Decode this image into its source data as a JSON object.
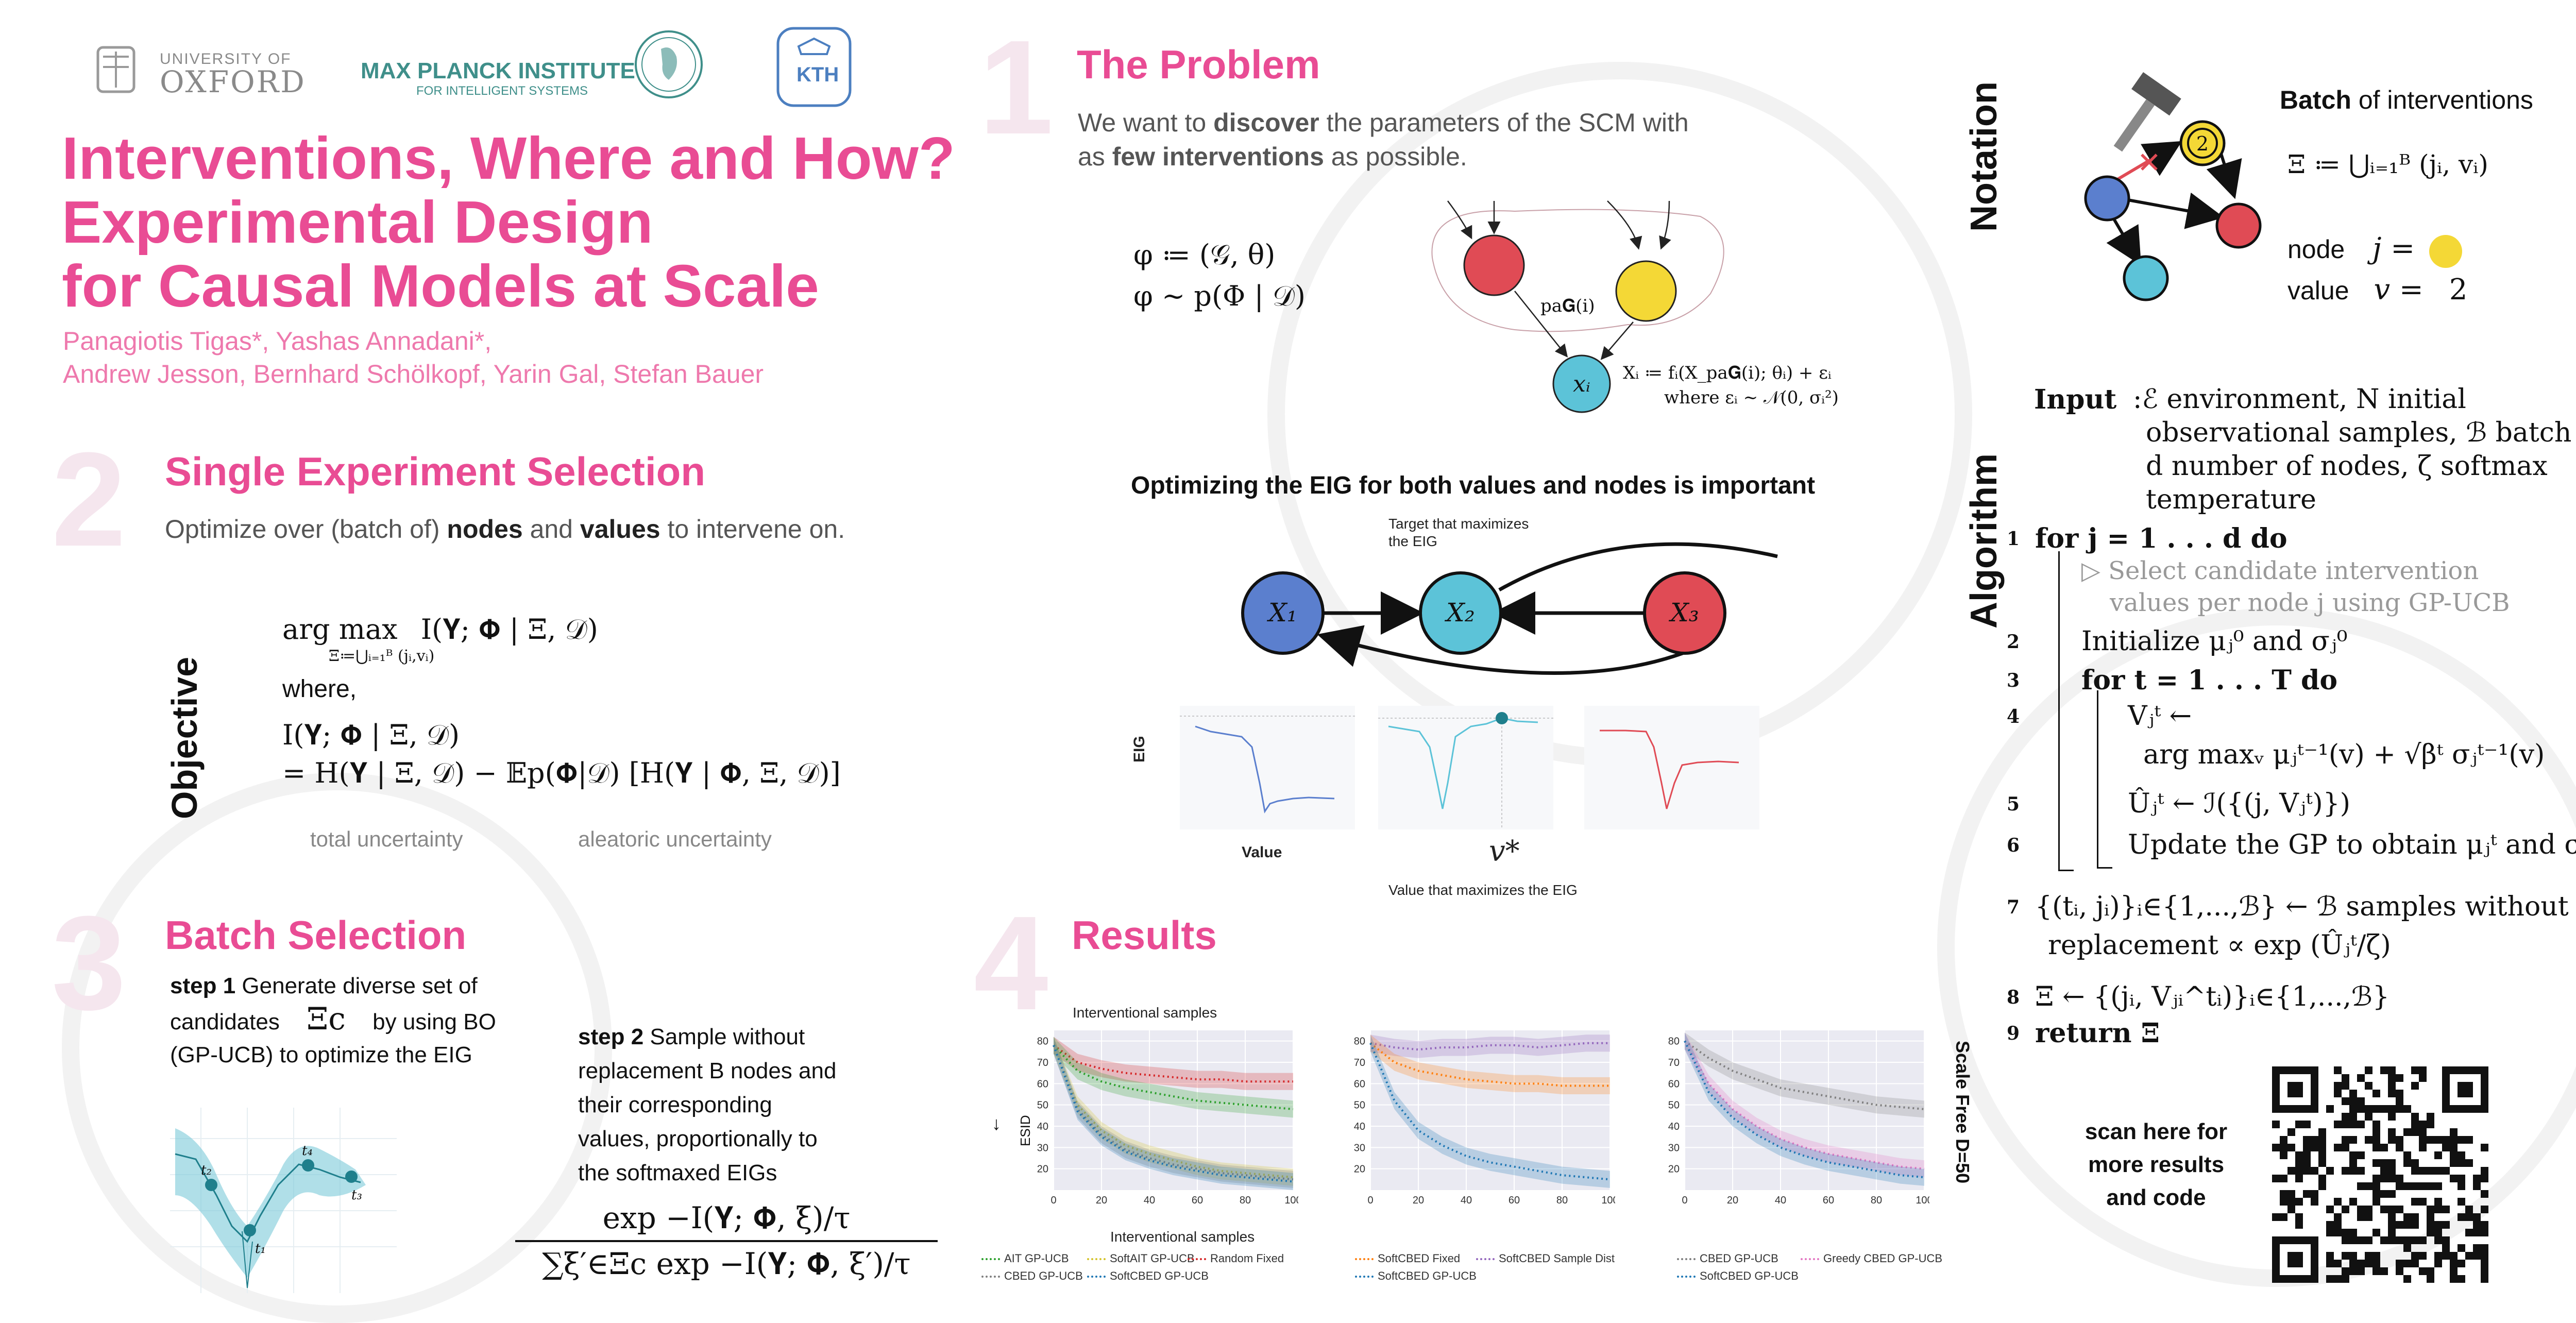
{
  "logos": {
    "oxford_top": "UNIVERSITY OF",
    "oxford_bottom": "OXFORD",
    "mpi_top": "MAX PLANCK INSTITUTE",
    "mpi_bottom": "FOR INTELLIGENT SYSTEMS",
    "kth": "KTH"
  },
  "title": {
    "line1": "Interventions, Where and How?",
    "line2": "Experimental Design",
    "line3": "for Causal Models at Scale"
  },
  "authors": {
    "line1": "Panagiotis Tigas*, Yashas Annadani*,",
    "line2": "Andrew Jesson, Bernhard Schölkopf, Yarin Gal, Stefan Bauer"
  },
  "section_numbers": {
    "s1": "1",
    "s2": "2",
    "s3": "3",
    "s4": "4"
  },
  "problem": {
    "heading": "The Problem",
    "text1a": "We want to ",
    "text1b": "discover",
    "text1c": " the parameters of the SCM with",
    "text2a": "as ",
    "text2b": "few interventions",
    "text2c": " as possible.",
    "eq1": "φ ≔ (𝒢, θ)",
    "eq2": "φ ∼ p(Φ | 𝒟)",
    "pa_label": "pa𝐆(i)",
    "xi_label": "xᵢ",
    "scm_eq1": "Xᵢ ≔ fᵢ(X_pa𝐆(i); θᵢ) + εᵢ",
    "scm_eq2": "where εᵢ ∼ 𝒩(0, σᵢ²)"
  },
  "eig": {
    "heading": "Optimizing the EIG for both values and nodes is important",
    "target_note_1": "Target that maximizes",
    "target_note_2": "the EIG",
    "node1": "X₁",
    "node2": "X₂",
    "node3": "X₃",
    "ylabel": "EIG",
    "xlabel": "Value",
    "vstar": "v*",
    "caption": "Value that maximizes the EIG"
  },
  "single": {
    "heading": "Single Experiment Selection",
    "text_a": "Optimize over (batch of) ",
    "text_b": "nodes",
    "text_c": " and ",
    "text_d": "values",
    "text_e": " to intervene on.",
    "vertical_label": "Objective",
    "argmax": "arg max",
    "argmax_sub": "Ξ≔⋃ᵢ₌₁ᴮ (jᵢ,vᵢ)",
    "objective": "I(𝐘; 𝚽 | Ξ, 𝒟)",
    "where": "where,",
    "mi": "I(𝐘; 𝚽 | Ξ, 𝒟)",
    "decomp": "=  H(𝐘 | Ξ, 𝒟) − 𝔼p(𝚽|𝒟) [H(𝐘 | 𝚽, Ξ, 𝒟)]",
    "total": "total uncertainty",
    "aleatoric": "aleatoric uncertainty"
  },
  "batch": {
    "heading": "Batch Selection",
    "step1_bold": "step 1",
    "step1_l1": " Generate diverse set of",
    "step1_l2a": "candidates",
    "step1_sym": "Ξc",
    "step1_l2b": "by using BO",
    "step1_l3": "(GP-UCB) to optimize the EIG",
    "step2_bold": "step 2",
    "step2_l1": " Sample without",
    "step2_l2": "replacement B nodes and",
    "step2_l3": "their corresponding",
    "step2_l4": "values, proportionally to",
    "step2_l5": "the softmaxed EIGs",
    "numerator": "exp −I(𝐘; 𝚽, ξ)/τ",
    "denominator": "∑ξ′∈Ξc exp −I(𝐘; 𝚽, ξ′)/τ",
    "t_labels": [
      "t₂",
      "t₁",
      "t₄",
      "t₃"
    ]
  },
  "results": {
    "heading": "Results",
    "panel_title": "Interventional samples",
    "ylabel": "ESID",
    "xlabel": "Interventional samples",
    "right_label": "Scale Free D=50",
    "legend1": [
      "AIT GP-UCB",
      "SoftAIT GP-UCB",
      "Random Fixed",
      "CBED GP-UCB",
      "SoftCBED GP-UCB"
    ],
    "legend2": [
      "SoftCBED Fixed",
      "SoftCBED Sample Dist",
      "SoftCBED GP-UCB"
    ],
    "legend3": [
      "CBED GP-UCB",
      "Greedy CBED GP-UCB",
      "SoftCBED GP-UCB"
    ],
    "xticks": [
      "0",
      "20",
      "40",
      "60",
      "80",
      "100"
    ],
    "yticks": [
      "80",
      "70",
      "60",
      "50",
      "40",
      "30",
      "20"
    ]
  },
  "chart_data": [
    {
      "type": "line",
      "x": [
        0,
        10,
        20,
        30,
        40,
        50,
        60,
        70,
        80,
        90,
        100
      ],
      "xlabel": "Interventional samples",
      "ylabel": "ESID",
      "ylim": [
        10,
        85
      ],
      "series": [
        {
          "name": "Random Fixed",
          "color": "#d62728",
          "values": [
            78,
            70,
            67,
            65,
            64,
            63,
            62,
            62,
            61,
            61,
            61
          ]
        },
        {
          "name": "AIT GP-UCB",
          "color": "#2ca02c",
          "values": [
            78,
            66,
            61,
            58,
            56,
            54,
            52,
            51,
            50,
            49,
            48
          ]
        },
        {
          "name": "SoftAIT GP-UCB",
          "color": "#d4c32a",
          "values": [
            78,
            50,
            38,
            31,
            27,
            24,
            21,
            19,
            18,
            17,
            16
          ]
        },
        {
          "name": "CBED GP-UCB",
          "color": "#7f7f7f",
          "values": [
            78,
            48,
            36,
            29,
            25,
            22,
            20,
            18,
            17,
            16,
            15
          ]
        },
        {
          "name": "SoftCBED GP-UCB",
          "color": "#1f77b4",
          "values": [
            78,
            47,
            35,
            28,
            24,
            21,
            19,
            17,
            16,
            15,
            14
          ]
        }
      ]
    },
    {
      "type": "line",
      "x": [
        0,
        10,
        20,
        30,
        40,
        50,
        60,
        70,
        80,
        90,
        100
      ],
      "xlabel": "",
      "ylabel": "",
      "ylim": [
        10,
        85
      ],
      "series": [
        {
          "name": "SoftCBED Sample Dist",
          "color": "#9467bd",
          "values": [
            79,
            77,
            76,
            77,
            77,
            78,
            78,
            77,
            78,
            79,
            79
          ]
        },
        {
          "name": "SoftCBED Fixed",
          "color": "#ff7f0e",
          "values": [
            79,
            70,
            66,
            64,
            62,
            61,
            60,
            60,
            59,
            59,
            59
          ]
        },
        {
          "name": "SoftCBED GP-UCB",
          "color": "#1f77b4",
          "values": [
            79,
            52,
            38,
            31,
            26,
            23,
            21,
            19,
            17,
            16,
            15
          ]
        }
      ]
    },
    {
      "type": "line",
      "x": [
        0,
        10,
        20,
        30,
        40,
        50,
        60,
        70,
        80,
        90,
        100
      ],
      "xlabel": "",
      "ylabel": "",
      "ylim": [
        10,
        85
      ],
      "series": [
        {
          "name": "CBED GP-UCB",
          "color": "#7f7f7f",
          "values": [
            80,
            72,
            66,
            62,
            58,
            56,
            54,
            52,
            50,
            49,
            48
          ]
        },
        {
          "name": "Greedy CBED GP-UCB",
          "color": "#e377c2",
          "values": [
            80,
            60,
            48,
            40,
            34,
            30,
            27,
            25,
            23,
            21,
            20
          ]
        },
        {
          "name": "SoftCBED GP-UCB",
          "color": "#1f77b4",
          "values": [
            80,
            56,
            44,
            36,
            30,
            26,
            23,
            21,
            19,
            17,
            16
          ]
        }
      ]
    }
  ],
  "notation": {
    "vertical_label": "Notation",
    "batch_bold": "Batch",
    "batch_rest": " of interventions",
    "xi_def": "Ξ ≔ ⋃ᵢ₌₁ᴮ (jᵢ, vᵢ)",
    "node_label": "node",
    "node_eq": "j =",
    "value_label": "value",
    "value_eq": "v =",
    "value_num": "2",
    "circle_num": "2"
  },
  "algorithm": {
    "vertical_label": "Algorithm",
    "input_label": "Input",
    "input_l1": ":ℰ environment, N initial",
    "input_l2": "observational samples, ℬ batch Size,",
    "input_l3": "d number of nodes, ζ softmax",
    "input_l4": "temperature",
    "lines": [
      {
        "n": "1",
        "text": "for j = 1 . . . d do"
      },
      {
        "n": "",
        "text": "▷ Select candidate intervention"
      },
      {
        "n": "",
        "text": "values per node j using GP-UCB"
      },
      {
        "n": "2",
        "text": "Initialize μⱼ⁰ and σⱼ⁰"
      },
      {
        "n": "3",
        "text": "for t = 1 . . . T do"
      },
      {
        "n": "4",
        "text": "Vⱼᵗ ←"
      },
      {
        "n": "",
        "text": "arg maxᵥ μⱼᵗ⁻¹(v) + √βᵗ σⱼᵗ⁻¹(v)"
      },
      {
        "n": "5",
        "text": "Ûⱼᵗ ← ℐ({(j, Vⱼᵗ)})"
      },
      {
        "n": "6",
        "text": "Update the GP to obtain μⱼᵗ and σⱼᵗ"
      },
      {
        "n": "7",
        "text": "{(tᵢ, jᵢ)}ᵢ∈{1,...,ℬ} ← ℬ samples without"
      },
      {
        "n": "",
        "text": "replacement ∝ exp (Ûⱼᵗ/ζ)"
      },
      {
        "n": "8",
        "text": "Ξ ← {(jᵢ, Vⱼᵢ^tᵢ)}ᵢ∈{1,...,ℬ}"
      },
      {
        "n": "9",
        "text": "return Ξ"
      }
    ]
  },
  "qr": {
    "line1": "scan here for",
    "line2": "more results",
    "line3": "and code"
  },
  "colors": {
    "accent_pink": "#e94c94",
    "node_red": "#e04b55",
    "node_yellow": "#f4d836",
    "node_blue": "#5b7fce",
    "node_cyan": "#5cc3d8"
  }
}
